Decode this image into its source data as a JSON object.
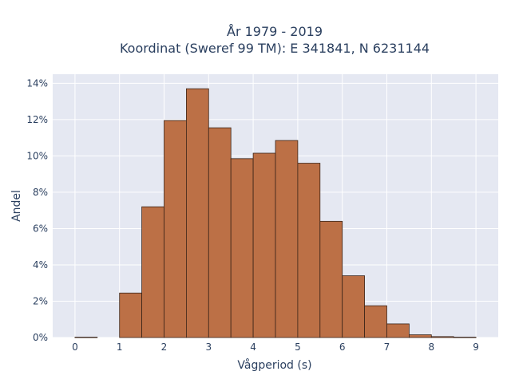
{
  "chart_data": {
    "type": "bar",
    "title_line1": "År 1979 - 2019",
    "title_line2": "Koordinat (Sweref 99 TM): E 341841, N 6231144",
    "xlabel": "Vågperiod (s)",
    "ylabel": "Andel",
    "xlim": [
      -0.5,
      9.5
    ],
    "ylim": [
      0,
      14.5
    ],
    "x_ticks": [
      0,
      1,
      2,
      3,
      4,
      5,
      6,
      7,
      8,
      9
    ],
    "x_tick_labels": [
      "0",
      "1",
      "2",
      "3",
      "4",
      "5",
      "6",
      "7",
      "8",
      "9"
    ],
    "y_ticks": [
      0,
      2,
      4,
      6,
      8,
      10,
      12,
      14
    ],
    "y_tick_labels": [
      "0%",
      "2%",
      "4%",
      "6%",
      "8%",
      "10%",
      "12%",
      "14%"
    ],
    "grid": true,
    "legend": "none",
    "bar_color": "#bc7046",
    "bar_edge_color": "#3a2418",
    "plot_bg": "#e5e8f2",
    "bins": [
      {
        "x0": 0.0,
        "x1": 0.5,
        "value": 0.02
      },
      {
        "x0": 1.0,
        "x1": 1.5,
        "value": 2.45
      },
      {
        "x0": 1.5,
        "x1": 2.0,
        "value": 7.2
      },
      {
        "x0": 2.0,
        "x1": 2.5,
        "value": 11.95
      },
      {
        "x0": 2.5,
        "x1": 3.0,
        "value": 13.7
      },
      {
        "x0": 3.0,
        "x1": 3.5,
        "value": 11.55
      },
      {
        "x0": 3.5,
        "x1": 4.0,
        "value": 9.85
      },
      {
        "x0": 4.0,
        "x1": 4.5,
        "value": 10.15
      },
      {
        "x0": 4.5,
        "x1": 5.0,
        "value": 10.85
      },
      {
        "x0": 5.0,
        "x1": 5.5,
        "value": 9.6
      },
      {
        "x0": 5.5,
        "x1": 6.0,
        "value": 6.4
      },
      {
        "x0": 6.0,
        "x1": 6.5,
        "value": 3.4
      },
      {
        "x0": 6.5,
        "x1": 7.0,
        "value": 1.75
      },
      {
        "x0": 7.0,
        "x1": 7.5,
        "value": 0.75
      },
      {
        "x0": 7.5,
        "x1": 8.0,
        "value": 0.15
      },
      {
        "x0": 8.0,
        "x1": 8.5,
        "value": 0.05
      },
      {
        "x0": 8.5,
        "x1": 9.0,
        "value": 0.02
      }
    ]
  }
}
